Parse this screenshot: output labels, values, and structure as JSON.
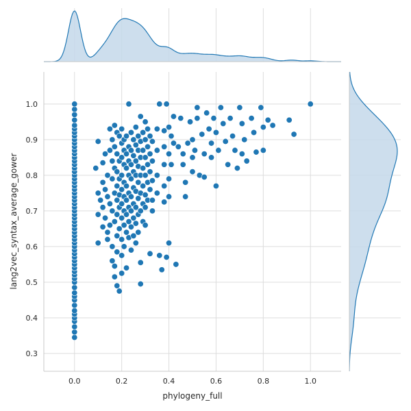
{
  "chart_data": {
    "type": "scatter",
    "title": "",
    "xlabel": "phylogeny_full",
    "ylabel": "lang2vec_syntax_average_gower",
    "xlim": [
      -0.13,
      1.13
    ],
    "ylim": [
      0.25,
      1.09
    ],
    "xticks": [
      0.0,
      0.2,
      0.4,
      0.6,
      0.8,
      1.0
    ],
    "yticks": [
      0.3,
      0.4,
      0.5,
      0.6,
      0.7,
      0.8,
      0.9,
      1.0
    ],
    "xtick_labels": [
      "0.0",
      "0.2",
      "0.4",
      "0.6",
      "0.8",
      "1.0"
    ],
    "ytick_labels": [
      "0.3",
      "0.4",
      "0.5",
      "0.6",
      "0.7",
      "0.8",
      "0.9",
      "1.0"
    ],
    "grid": true,
    "marginal_plots": "kde",
    "colors": {
      "points": "#1f77b4",
      "kde_fill": "#c4d8ea",
      "grid": "#dcdcdc",
      "spine": "#c8c8c8"
    },
    "series": [
      {
        "points": [
          [
            0.0,
            0.345
          ],
          [
            0.0,
            0.36
          ],
          [
            0.0,
            0.375
          ],
          [
            0.0,
            0.39
          ],
          [
            0.0,
            0.4
          ],
          [
            0.0,
            0.41
          ],
          [
            0.0,
            0.42
          ],
          [
            0.0,
            0.435
          ],
          [
            0.0,
            0.45
          ],
          [
            0.0,
            0.46
          ],
          [
            0.0,
            0.47
          ],
          [
            0.0,
            0.485
          ],
          [
            0.0,
            0.5
          ],
          [
            0.0,
            0.51
          ],
          [
            0.0,
            0.52
          ],
          [
            0.0,
            0.53
          ],
          [
            0.0,
            0.54
          ],
          [
            0.0,
            0.55
          ],
          [
            0.0,
            0.56
          ],
          [
            0.0,
            0.57
          ],
          [
            0.0,
            0.58
          ],
          [
            0.0,
            0.59
          ],
          [
            0.0,
            0.6
          ],
          [
            0.0,
            0.61
          ],
          [
            0.0,
            0.62
          ],
          [
            0.0,
            0.63
          ],
          [
            0.0,
            0.64
          ],
          [
            0.0,
            0.65
          ],
          [
            0.0,
            0.66
          ],
          [
            0.0,
            0.67
          ],
          [
            0.0,
            0.68
          ],
          [
            0.0,
            0.69
          ],
          [
            0.0,
            0.7
          ],
          [
            0.0,
            0.71
          ],
          [
            0.0,
            0.72
          ],
          [
            0.0,
            0.73
          ],
          [
            0.0,
            0.74
          ],
          [
            0.0,
            0.75
          ],
          [
            0.0,
            0.76
          ],
          [
            0.0,
            0.77
          ],
          [
            0.0,
            0.78
          ],
          [
            0.0,
            0.79
          ],
          [
            0.0,
            0.8
          ],
          [
            0.0,
            0.81
          ],
          [
            0.0,
            0.82
          ],
          [
            0.0,
            0.83
          ],
          [
            0.0,
            0.84
          ],
          [
            0.0,
            0.85
          ],
          [
            0.0,
            0.86
          ],
          [
            0.0,
            0.87
          ],
          [
            0.0,
            0.88
          ],
          [
            0.0,
            0.89
          ],
          [
            0.0,
            0.9
          ],
          [
            0.0,
            0.91
          ],
          [
            0.0,
            0.92
          ],
          [
            0.0,
            0.93
          ],
          [
            0.0,
            0.94
          ],
          [
            0.0,
            0.955
          ],
          [
            0.0,
            0.97
          ],
          [
            0.0,
            0.985
          ],
          [
            0.0,
            1.0
          ],
          [
            0.09,
            0.82
          ],
          [
            0.1,
            0.895
          ],
          [
            0.1,
            0.75
          ],
          [
            0.1,
            0.69
          ],
          [
            0.1,
            0.61
          ],
          [
            0.11,
            0.73
          ],
          [
            0.12,
            0.835
          ],
          [
            0.12,
            0.78
          ],
          [
            0.12,
            0.71
          ],
          [
            0.12,
            0.655
          ],
          [
            0.13,
            0.86
          ],
          [
            0.13,
            0.76
          ],
          [
            0.13,
            0.68
          ],
          [
            0.14,
            0.8
          ],
          [
            0.14,
            0.74
          ],
          [
            0.14,
            0.64
          ],
          [
            0.14,
            0.62
          ],
          [
            0.15,
            0.93
          ],
          [
            0.15,
            0.87
          ],
          [
            0.15,
            0.72
          ],
          [
            0.15,
            0.66
          ],
          [
            0.16,
            0.9
          ],
          [
            0.16,
            0.84
          ],
          [
            0.16,
            0.79
          ],
          [
            0.16,
            0.7
          ],
          [
            0.16,
            0.6
          ],
          [
            0.16,
            0.56
          ],
          [
            0.17,
            0.94
          ],
          [
            0.17,
            0.88
          ],
          [
            0.17,
            0.82
          ],
          [
            0.17,
            0.75
          ],
          [
            0.17,
            0.67
          ],
          [
            0.17,
            0.545
          ],
          [
            0.17,
            0.515
          ],
          [
            0.18,
            0.92
          ],
          [
            0.18,
            0.86
          ],
          [
            0.18,
            0.81
          ],
          [
            0.18,
            0.77
          ],
          [
            0.18,
            0.73
          ],
          [
            0.18,
            0.69
          ],
          [
            0.18,
            0.63
          ],
          [
            0.18,
            0.585
          ],
          [
            0.18,
            0.49
          ],
          [
            0.19,
            0.91
          ],
          [
            0.19,
            0.84
          ],
          [
            0.19,
            0.79
          ],
          [
            0.19,
            0.745
          ],
          [
            0.19,
            0.71
          ],
          [
            0.19,
            0.65
          ],
          [
            0.19,
            0.475
          ],
          [
            0.2,
            0.93
          ],
          [
            0.2,
            0.89
          ],
          [
            0.2,
            0.85
          ],
          [
            0.2,
            0.8
          ],
          [
            0.2,
            0.76
          ],
          [
            0.2,
            0.72
          ],
          [
            0.2,
            0.68
          ],
          [
            0.2,
            0.62
          ],
          [
            0.2,
            0.575
          ],
          [
            0.2,
            0.525
          ],
          [
            0.21,
            0.9
          ],
          [
            0.21,
            0.87
          ],
          [
            0.21,
            0.83
          ],
          [
            0.21,
            0.78
          ],
          [
            0.21,
            0.74
          ],
          [
            0.21,
            0.7
          ],
          [
            0.21,
            0.66
          ],
          [
            0.21,
            0.6
          ],
          [
            0.22,
            0.91
          ],
          [
            0.22,
            0.86
          ],
          [
            0.22,
            0.82
          ],
          [
            0.22,
            0.77
          ],
          [
            0.22,
            0.73
          ],
          [
            0.22,
            0.69
          ],
          [
            0.22,
            0.64
          ],
          [
            0.22,
            0.54
          ],
          [
            0.23,
            1.0
          ],
          [
            0.23,
            0.88
          ],
          [
            0.23,
            0.84
          ],
          [
            0.23,
            0.8
          ],
          [
            0.23,
            0.75
          ],
          [
            0.23,
            0.71
          ],
          [
            0.23,
            0.67
          ],
          [
            0.23,
            0.625
          ],
          [
            0.24,
            0.92
          ],
          [
            0.24,
            0.87
          ],
          [
            0.24,
            0.83
          ],
          [
            0.24,
            0.79
          ],
          [
            0.24,
            0.74
          ],
          [
            0.24,
            0.7
          ],
          [
            0.24,
            0.655
          ],
          [
            0.24,
            0.59
          ],
          [
            0.25,
            0.9
          ],
          [
            0.25,
            0.855
          ],
          [
            0.25,
            0.81
          ],
          [
            0.25,
            0.765
          ],
          [
            0.25,
            0.72
          ],
          [
            0.25,
            0.68
          ],
          [
            0.25,
            0.63
          ],
          [
            0.26,
            0.935
          ],
          [
            0.26,
            0.885
          ],
          [
            0.26,
            0.84
          ],
          [
            0.26,
            0.8
          ],
          [
            0.26,
            0.755
          ],
          [
            0.26,
            0.71
          ],
          [
            0.26,
            0.665
          ],
          [
            0.26,
            0.61
          ],
          [
            0.27,
            0.91
          ],
          [
            0.27,
            0.87
          ],
          [
            0.27,
            0.825
          ],
          [
            0.27,
            0.78
          ],
          [
            0.27,
            0.735
          ],
          [
            0.27,
            0.69
          ],
          [
            0.27,
            0.64
          ],
          [
            0.28,
            0.965
          ],
          [
            0.28,
            0.895
          ],
          [
            0.28,
            0.85
          ],
          [
            0.28,
            0.8
          ],
          [
            0.28,
            0.75
          ],
          [
            0.28,
            0.7
          ],
          [
            0.28,
            0.555
          ],
          [
            0.28,
            0.495
          ],
          [
            0.29,
            0.92
          ],
          [
            0.29,
            0.87
          ],
          [
            0.29,
            0.82
          ],
          [
            0.29,
            0.77
          ],
          [
            0.29,
            0.72
          ],
          [
            0.29,
            0.67
          ],
          [
            0.3,
            0.95
          ],
          [
            0.3,
            0.9
          ],
          [
            0.3,
            0.85
          ],
          [
            0.3,
            0.8
          ],
          [
            0.3,
            0.745
          ],
          [
            0.3,
            0.71
          ],
          [
            0.3,
            0.66
          ],
          [
            0.31,
            0.93
          ],
          [
            0.31,
            0.88
          ],
          [
            0.31,
            0.83
          ],
          [
            0.31,
            0.78
          ],
          [
            0.31,
            0.73
          ],
          [
            0.32,
            0.91
          ],
          [
            0.32,
            0.86
          ],
          [
            0.32,
            0.81
          ],
          [
            0.32,
            0.76
          ],
          [
            0.32,
            0.58
          ],
          [
            0.33,
            0.895
          ],
          [
            0.33,
            0.84
          ],
          [
            0.33,
            0.785
          ],
          [
            0.33,
            0.73
          ],
          [
            0.33,
            0.7
          ],
          [
            0.35,
            0.93
          ],
          [
            0.35,
            0.87
          ],
          [
            0.35,
            0.8
          ],
          [
            0.35,
            0.75
          ],
          [
            0.36,
            1.0
          ],
          [
            0.36,
            0.575
          ],
          [
            0.37,
            0.535
          ],
          [
            0.38,
            0.925
          ],
          [
            0.38,
            0.88
          ],
          [
            0.38,
            0.83
          ],
          [
            0.38,
            0.77
          ],
          [
            0.38,
            0.725
          ],
          [
            0.39,
            1.0
          ],
          [
            0.39,
            0.57
          ],
          [
            0.4,
            0.935
          ],
          [
            0.4,
            0.86
          ],
          [
            0.4,
            0.79
          ],
          [
            0.4,
            0.74
          ],
          [
            0.4,
            0.61
          ],
          [
            0.41,
            0.91
          ],
          [
            0.41,
            0.83
          ],
          [
            0.42,
            0.965
          ],
          [
            0.42,
            0.89
          ],
          [
            0.43,
            0.55
          ],
          [
            0.44,
            0.88
          ],
          [
            0.45,
            0.96
          ],
          [
            0.46,
            0.86
          ],
          [
            0.46,
            0.83
          ],
          [
            0.47,
            0.78
          ],
          [
            0.47,
            0.74
          ],
          [
            0.48,
            0.89
          ],
          [
            0.49,
            0.95
          ],
          [
            0.5,
            0.9
          ],
          [
            0.5,
            0.85
          ],
          [
            0.5,
            0.81
          ],
          [
            0.51,
            0.87
          ],
          [
            0.52,
            0.96
          ],
          [
            0.52,
            0.99
          ],
          [
            0.53,
            0.8
          ],
          [
            0.54,
            0.915
          ],
          [
            0.55,
            0.86
          ],
          [
            0.55,
            0.795
          ],
          [
            0.56,
            0.975
          ],
          [
            0.57,
            0.93
          ],
          [
            0.58,
            0.89
          ],
          [
            0.58,
            0.85
          ],
          [
            0.59,
            0.96
          ],
          [
            0.6,
            0.92
          ],
          [
            0.6,
            0.77
          ],
          [
            0.61,
            0.87
          ],
          [
            0.62,
            0.99
          ],
          [
            0.63,
            0.945
          ],
          [
            0.64,
            0.895
          ],
          [
            0.65,
            0.83
          ],
          [
            0.66,
            0.96
          ],
          [
            0.67,
            0.91
          ],
          [
            0.68,
            0.87
          ],
          [
            0.69,
            0.82
          ],
          [
            0.7,
            0.99
          ],
          [
            0.71,
            0.945
          ],
          [
            0.71,
            0.86
          ],
          [
            0.72,
            0.9
          ],
          [
            0.73,
            0.84
          ],
          [
            0.75,
            0.96
          ],
          [
            0.76,
            0.92
          ],
          [
            0.77,
            0.865
          ],
          [
            0.79,
            0.99
          ],
          [
            0.8,
            0.935
          ],
          [
            0.8,
            0.87
          ],
          [
            0.82,
            0.955
          ],
          [
            0.84,
            0.94
          ],
          [
            0.91,
            0.955
          ],
          [
            0.93,
            0.915
          ],
          [
            1.0,
            1.0
          ]
        ]
      }
    ]
  }
}
